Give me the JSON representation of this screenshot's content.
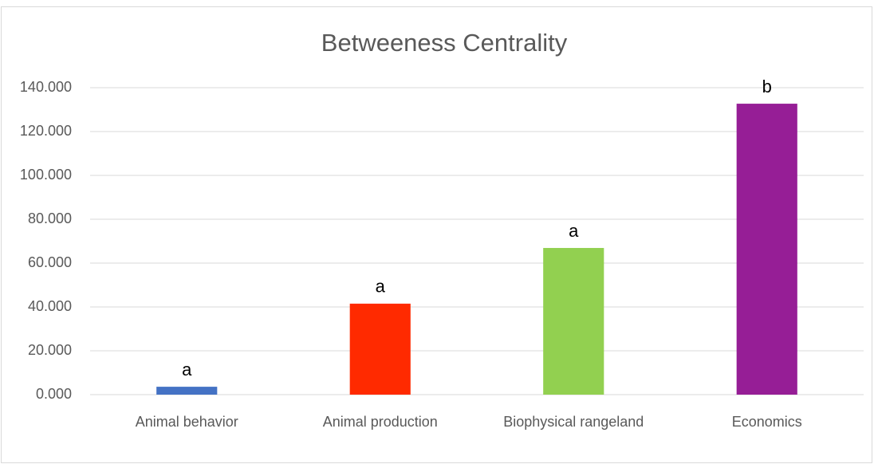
{
  "chart_data": {
    "type": "bar",
    "title": "Betweeness Centrality",
    "categories": [
      "Animal behavior",
      "Animal production",
      "Biophysical rangeland",
      "Economics"
    ],
    "values": [
      3.6,
      41.5,
      66.9,
      132.7
    ],
    "colors": [
      "#4472c4",
      "#ff2a00",
      "#92d050",
      "#961e96"
    ],
    "bar_annotations": [
      "a",
      "a",
      "a",
      "b"
    ],
    "ylim": [
      0,
      140
    ],
    "yticks": [
      {
        "value": 0,
        "label": "0.000"
      },
      {
        "value": 20,
        "label": "20.000"
      },
      {
        "value": 40,
        "label": "40.000"
      },
      {
        "value": 60,
        "label": "60.000"
      },
      {
        "value": 80,
        "label": "80.000"
      },
      {
        "value": 100,
        "label": "100.000"
      },
      {
        "value": 120,
        "label": "120.000"
      },
      {
        "value": 140,
        "label": "140.000"
      }
    ],
    "grid": true
  }
}
